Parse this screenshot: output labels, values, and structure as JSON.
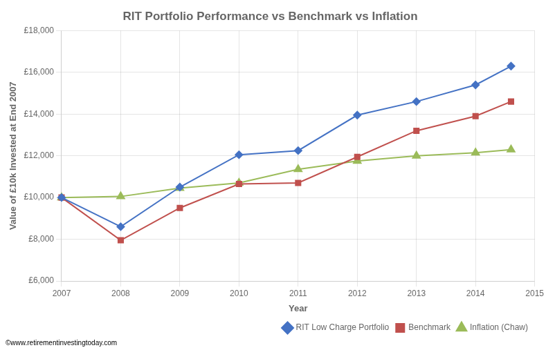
{
  "chart_data": {
    "type": "line",
    "title": "RIT Portfolio Performance vs Benchmark vs Inflation",
    "xlabel": "Year",
    "ylabel": "Value of £10k Invested at End 2007",
    "annotation": "©www.retirementinvestingtoday.com",
    "x": [
      2007,
      2008,
      2009,
      2010,
      2011,
      2012,
      2013,
      2014,
      2014.6
    ],
    "series": [
      {
        "name": "RIT Low Charge Portfolio",
        "color": "#4472C4",
        "marker": "diamond",
        "values": [
          10000,
          8600,
          10500,
          12050,
          12250,
          13950,
          14600,
          15400,
          16300
        ]
      },
      {
        "name": "Benchmark",
        "color": "#C0504D",
        "marker": "square",
        "values": [
          10000,
          7950,
          9500,
          10650,
          10700,
          11950,
          13200,
          13900,
          14600
        ]
      },
      {
        "name": "Inflation (Chaw)",
        "color": "#9BBB59",
        "marker": "triangle",
        "values": [
          10000,
          10050,
          10450,
          10700,
          11350,
          11750,
          12000,
          12150,
          12300
        ]
      }
    ],
    "xlim": [
      2007,
      2015
    ],
    "xticks": [
      2007,
      2008,
      2009,
      2010,
      2011,
      2012,
      2013,
      2014,
      2015
    ],
    "ylim": [
      6000,
      18000
    ],
    "yticks": [
      {
        "value": 6000,
        "label": "£6,000"
      },
      {
        "value": 8000,
        "label": "£8,000"
      },
      {
        "value": 10000,
        "label": "£10,000"
      },
      {
        "value": 12000,
        "label": "£12,000"
      },
      {
        "value": 14000,
        "label": "£14,000"
      },
      {
        "value": 16000,
        "label": "£16,000"
      },
      {
        "value": 18000,
        "label": "£18,000"
      }
    ],
    "grid": true,
    "legend": "lower right"
  }
}
